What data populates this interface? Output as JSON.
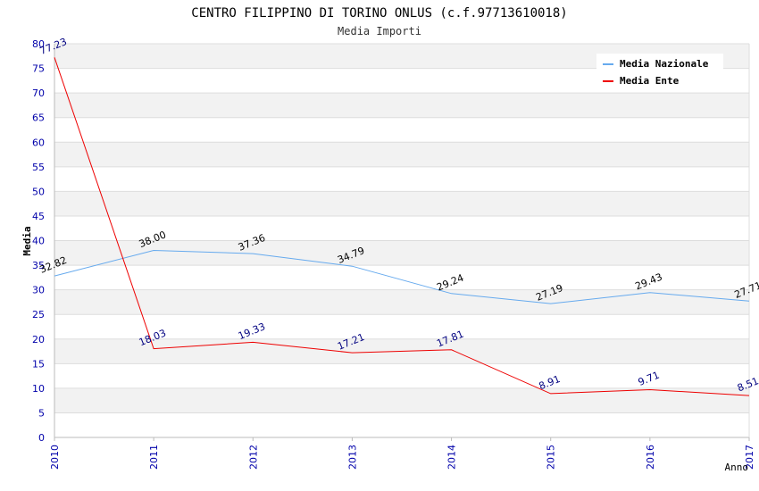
{
  "chart_data": {
    "type": "line",
    "title": "CENTRO FILIPPINO DI TORINO ONLUS (c.f.97713610018)",
    "subtitle": "Media Importi",
    "xlabel": "Anno",
    "ylabel": "Media",
    "x": [
      "2010",
      "2011",
      "2012",
      "2013",
      "2014",
      "2015",
      "2016",
      "2017"
    ],
    "ylim": [
      0,
      80
    ],
    "yticks": [
      "0",
      "5",
      "10",
      "15",
      "20",
      "25",
      "30",
      "35",
      "40",
      "45",
      "50",
      "55",
      "60",
      "65",
      "70",
      "75",
      "80"
    ],
    "grid": true,
    "legend_position": "top-right",
    "series": [
      {
        "name": "Media Nazionale",
        "color": "#66aaee",
        "label_color": "#000000",
        "values": [
          32.82,
          38.0,
          37.36,
          34.79,
          29.24,
          27.19,
          29.43,
          27.71
        ],
        "labels": [
          "32.82",
          "38.00",
          "37.36",
          "34.79",
          "29.24",
          "27.19",
          "29.43",
          "27.71"
        ]
      },
      {
        "name": "Media Ente",
        "color": "#ee0000",
        "label_color": "#000080",
        "values": [
          77.23,
          18.03,
          19.33,
          17.21,
          17.81,
          8.91,
          9.71,
          8.51
        ],
        "labels": [
          "77.23",
          "18.03",
          "19.33",
          "17.21",
          "17.81",
          "8.91",
          "9.71",
          "8.51"
        ]
      }
    ]
  },
  "colors": {
    "axis_tick_text": "#0000aa",
    "band_shade": "#f2f2f2",
    "grid_line": "#dddddd"
  }
}
